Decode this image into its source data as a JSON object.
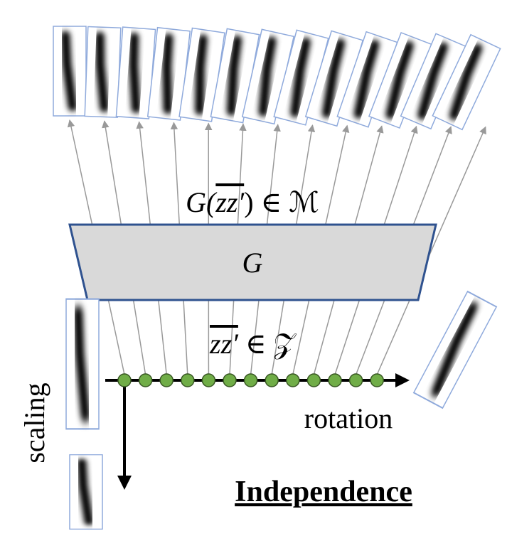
{
  "manifold_label": {
    "prefix": "G(",
    "latent": "zz′",
    "suffix": ") ∈ ℳ"
  },
  "generator_label": "G",
  "latent_label": {
    "latent": "zz′",
    "suffix": " ∈ 𝒵"
  },
  "vertical_axis_label": "scaling",
  "horizontal_axis_label": "rotation",
  "caption": "Independence"
}
